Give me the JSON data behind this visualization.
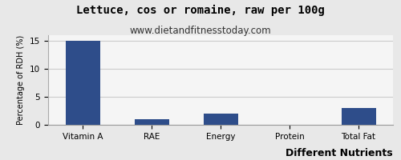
{
  "title": "Lettuce, cos or romaine, raw per 100g",
  "subtitle": "www.dietandfitnesstoday.com",
  "xlabel": "Different Nutrients",
  "ylabel": "Percentage of RDH (%)",
  "categories": [
    "Vitamin A",
    "RAE",
    "Energy",
    "Protein",
    "Total Fat"
  ],
  "values": [
    15,
    1,
    2,
    0,
    3
  ],
  "bar_color": "#2e4d8a",
  "ylim": [
    0,
    16
  ],
  "yticks": [
    0,
    5,
    10,
    15
  ],
  "background_color": "#e8e8e8",
  "plot_background": "#f5f5f5",
  "title_fontsize": 10,
  "subtitle_fontsize": 8.5,
  "xlabel_fontsize": 9,
  "ylabel_fontsize": 7,
  "tick_fontsize": 7.5
}
